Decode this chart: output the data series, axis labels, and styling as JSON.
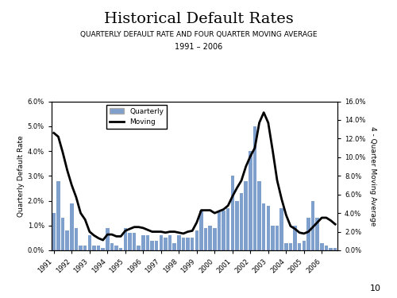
{
  "title": "Historical Default Rates",
  "subtitle1": "QUARTERLY DEFAULT RATE AND FOUR QUARTER MOVING AVERAGE",
  "subtitle2": "1991 – 2006",
  "ylabel_left": "Quarterly Default Rate",
  "ylabel_right": "4 - Quarter Moving Average",
  "legend_quarterly": "Quarterly",
  "legend_moving": "Moving",
  "page_number": "10",
  "bar_color": "#7f9fcd",
  "line_color": "#000000",
  "ylim_left": [
    0.0,
    0.06
  ],
  "ylim_right": [
    0.0,
    0.16
  ],
  "yticks_left": [
    0.0,
    0.01,
    0.02,
    0.03,
    0.04,
    0.05,
    0.06
  ],
  "ytick_labels_left": [
    "0.0%",
    "1.0%",
    "2.0%",
    "3.0%",
    "4.0%",
    "5.0%",
    "6.0%"
  ],
  "yticks_right": [
    0.0,
    0.02,
    0.04,
    0.06,
    0.08,
    0.1,
    0.12,
    0.14,
    0.16
  ],
  "ytick_labels_right": [
    "0.0%",
    "2.0%",
    "4.0%",
    "6.0%",
    "8.0%",
    "10.0%",
    "12.0%",
    "14.0%",
    "16.0%"
  ],
  "xtick_labels": [
    "1991",
    "1992",
    "1993",
    "1994",
    "1995",
    "1996",
    "1997",
    "1998",
    "1999",
    "2000",
    "2001",
    "2002",
    "2003",
    "2004",
    "2005",
    "2006"
  ],
  "quarterly": [
    0.015,
    0.028,
    0.013,
    0.008,
    0.019,
    0.009,
    0.002,
    0.002,
    0.006,
    0.002,
    0.002,
    0.001,
    0.009,
    0.003,
    0.002,
    0.001,
    0.009,
    0.007,
    0.007,
    0.002,
    0.006,
    0.006,
    0.004,
    0.004,
    0.006,
    0.005,
    0.006,
    0.003,
    0.006,
    0.005,
    0.005,
    0.005,
    0.008,
    0.016,
    0.009,
    0.01,
    0.009,
    0.016,
    0.016,
    0.017,
    0.03,
    0.02,
    0.023,
    0.028,
    0.04,
    0.05,
    0.028,
    0.019,
    0.018,
    0.01,
    0.01,
    0.017,
    0.003,
    0.003,
    0.01,
    0.003,
    0.004,
    0.013,
    0.02,
    0.013,
    0.003,
    0.002,
    0.001,
    0.001
  ],
  "moving": [
    0.126,
    0.122,
    0.105,
    0.086,
    0.07,
    0.057,
    0.04,
    0.033,
    0.02,
    0.016,
    0.013,
    0.011,
    0.017,
    0.017,
    0.015,
    0.015,
    0.021,
    0.023,
    0.025,
    0.025,
    0.024,
    0.022,
    0.02,
    0.02,
    0.02,
    0.019,
    0.02,
    0.02,
    0.019,
    0.018,
    0.02,
    0.021,
    0.03,
    0.043,
    0.043,
    0.043,
    0.04,
    0.042,
    0.044,
    0.048,
    0.058,
    0.067,
    0.075,
    0.09,
    0.101,
    0.11,
    0.137,
    0.148,
    0.137,
    0.107,
    0.075,
    0.055,
    0.038,
    0.026,
    0.023,
    0.019,
    0.018,
    0.02,
    0.025,
    0.03,
    0.035,
    0.035,
    0.032,
    0.028
  ]
}
